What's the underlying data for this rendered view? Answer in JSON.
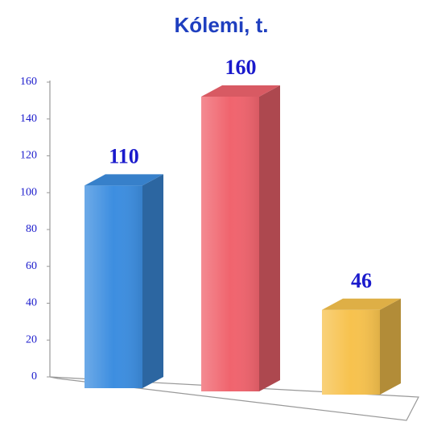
{
  "chart_data": {
    "type": "bar3d",
    "title": "Kólemi, t.",
    "categories": [
      null,
      null,
      null
    ],
    "values": [
      110,
      160,
      46
    ],
    "colors": [
      "#3d8ee0",
      "#f0646e",
      "#f7c24e"
    ],
    "ylim": [
      0,
      160
    ],
    "yticks": [
      0,
      20,
      40,
      60,
      80,
      100,
      120,
      140,
      160
    ]
  }
}
